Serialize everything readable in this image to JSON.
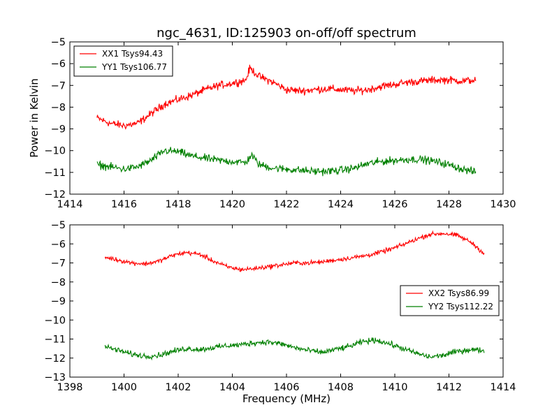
{
  "figure": {
    "title": "ngc_4631, ID:125903 on-off/off spectrum",
    "ylabel": "Power in Kelvin",
    "xlabel": "Frequency (MHz)"
  },
  "chart_data": [
    {
      "type": "line",
      "title": "ngc_4631, ID:125903 on-off/off spectrum",
      "ylabel": "Power in Kelvin",
      "xlabel": "",
      "xlim": [
        1414,
        1430
      ],
      "ylim": [
        -12,
        -5
      ],
      "xticks": [
        "1414",
        "1416",
        "1418",
        "1420",
        "1422",
        "1424",
        "1426",
        "1428",
        "1430"
      ],
      "yticks": [
        "−5",
        "−6",
        "−7",
        "−8",
        "−9",
        "−10",
        "−11",
        "−12"
      ],
      "grid": false,
      "legend_position": "upper-left",
      "series": [
        {
          "name": "XX1 Tsys94.43",
          "color": "#ff0000",
          "noise": 0.12,
          "x": [
            1415.0,
            1415.5,
            1416.0,
            1416.5,
            1417.0,
            1417.5,
            1418.0,
            1418.5,
            1419.0,
            1419.5,
            1420.0,
            1420.5,
            1420.65,
            1421.0,
            1421.5,
            1422.0,
            1422.5,
            1423.0,
            1423.5,
            1424.0,
            1424.5,
            1425.0,
            1425.5,
            1426.0,
            1426.5,
            1427.0,
            1427.5,
            1428.0,
            1428.5,
            1429.0
          ],
          "y": [
            -8.5,
            -8.75,
            -8.85,
            -8.75,
            -8.3,
            -7.85,
            -7.65,
            -7.45,
            -7.2,
            -7.0,
            -6.9,
            -6.75,
            -6.2,
            -6.6,
            -6.85,
            -7.2,
            -7.25,
            -7.2,
            -7.15,
            -7.2,
            -7.25,
            -7.2,
            -7.05,
            -6.95,
            -6.85,
            -6.8,
            -6.75,
            -6.75,
            -6.8,
            -6.75
          ]
        },
        {
          "name": "YY1 Tsys106.77",
          "color": "#008000",
          "noise": 0.12,
          "x": [
            1415.0,
            1415.5,
            1416.0,
            1416.5,
            1417.0,
            1417.5,
            1418.0,
            1418.5,
            1419.0,
            1419.5,
            1420.0,
            1420.5,
            1420.7,
            1421.0,
            1421.5,
            1422.0,
            1422.5,
            1423.0,
            1423.5,
            1424.0,
            1424.5,
            1425.0,
            1425.5,
            1426.0,
            1426.5,
            1427.0,
            1427.5,
            1428.0,
            1428.5,
            1429.0
          ],
          "y": [
            -10.65,
            -10.75,
            -10.85,
            -10.75,
            -10.45,
            -10.0,
            -10.05,
            -10.25,
            -10.35,
            -10.45,
            -10.5,
            -10.55,
            -10.2,
            -10.65,
            -10.8,
            -10.85,
            -10.9,
            -10.95,
            -10.95,
            -10.9,
            -10.8,
            -10.6,
            -10.5,
            -10.45,
            -10.4,
            -10.4,
            -10.5,
            -10.65,
            -10.85,
            -11.0
          ]
        }
      ]
    },
    {
      "type": "line",
      "title": "",
      "ylabel": "",
      "xlabel": "Frequency (MHz)",
      "xlim": [
        1398,
        1414
      ],
      "ylim": [
        -13,
        -5
      ],
      "xticks": [
        "1398",
        "1400",
        "1402",
        "1404",
        "1406",
        "1408",
        "1410",
        "1412",
        "1414"
      ],
      "yticks": [
        "−5",
        "−6",
        "−7",
        "−8",
        "−9",
        "−10",
        "−11",
        "−12",
        "−13"
      ],
      "grid": false,
      "legend_position": "center-right",
      "series": [
        {
          "name": "XX2 Tsys86.99",
          "color": "#ff0000",
          "noise": 0.08,
          "x": [
            1399.3,
            1399.8,
            1400.3,
            1400.8,
            1401.3,
            1401.8,
            1402.3,
            1402.8,
            1403.3,
            1403.8,
            1404.3,
            1404.8,
            1405.3,
            1405.8,
            1406.3,
            1406.8,
            1407.3,
            1407.8,
            1408.3,
            1408.8,
            1409.3,
            1409.8,
            1410.3,
            1410.8,
            1411.3,
            1411.8,
            1412.3,
            1412.8,
            1413.3
          ],
          "y": [
            -6.7,
            -6.85,
            -7.0,
            -7.05,
            -6.9,
            -6.6,
            -6.45,
            -6.55,
            -6.9,
            -7.2,
            -7.35,
            -7.3,
            -7.2,
            -7.1,
            -7.0,
            -7.0,
            -6.95,
            -6.85,
            -6.75,
            -6.65,
            -6.5,
            -6.3,
            -6.05,
            -5.75,
            -5.5,
            -5.45,
            -5.55,
            -5.9,
            -6.5
          ]
        },
        {
          "name": "YY2 Tsys112.22",
          "color": "#008000",
          "noise": 0.1,
          "x": [
            1399.3,
            1399.8,
            1400.3,
            1400.8,
            1401.3,
            1401.8,
            1402.3,
            1402.8,
            1403.3,
            1403.8,
            1404.3,
            1404.8,
            1405.3,
            1405.8,
            1406.3,
            1406.8,
            1407.3,
            1407.8,
            1408.3,
            1408.8,
            1409.3,
            1409.8,
            1410.3,
            1410.8,
            1411.3,
            1411.8,
            1412.3,
            1412.8,
            1413.3
          ],
          "y": [
            -11.4,
            -11.6,
            -11.8,
            -11.9,
            -11.85,
            -11.65,
            -11.5,
            -11.55,
            -11.45,
            -11.35,
            -11.3,
            -11.2,
            -11.15,
            -11.25,
            -11.45,
            -11.6,
            -11.7,
            -11.55,
            -11.4,
            -11.15,
            -11.05,
            -11.25,
            -11.5,
            -11.75,
            -11.95,
            -11.85,
            -11.65,
            -11.55,
            -11.6
          ]
        }
      ]
    }
  ]
}
